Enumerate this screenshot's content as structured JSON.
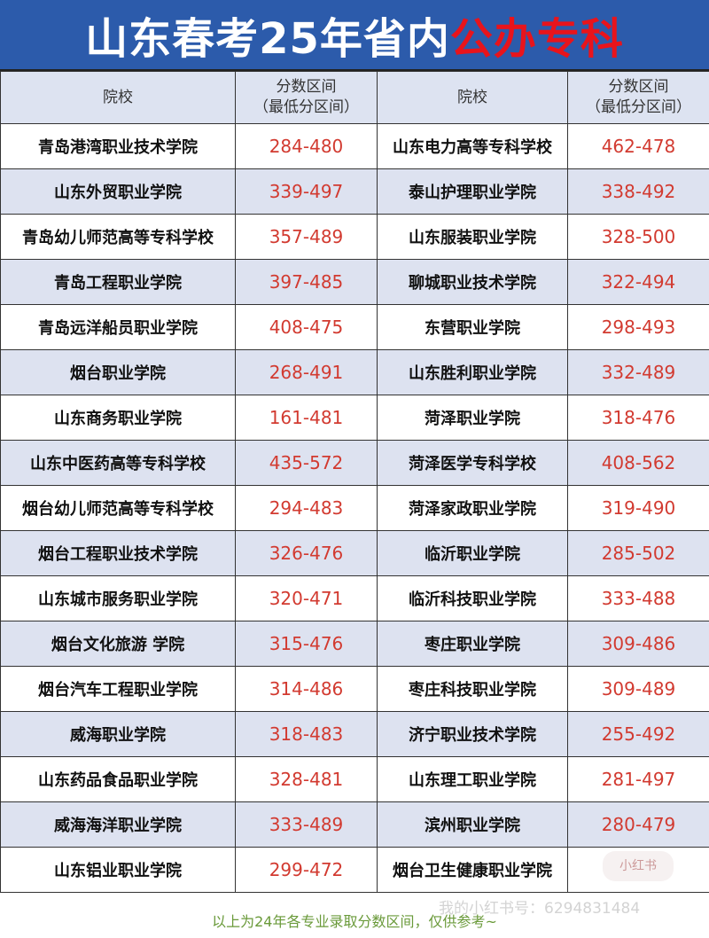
{
  "title": {
    "main": "山东春考25年省内",
    "highlight": "公办专科"
  },
  "headers": {
    "school": "院校",
    "range_line1": "分数区间",
    "range_line2": "（最低分区间）"
  },
  "rows": [
    {
      "a": "青岛港湾职业技术学院",
      "av": "284-480",
      "b": "山东电力高等专科学校",
      "bv": "462-478"
    },
    {
      "a": "山东外贸职业学院",
      "av": "339-497",
      "b": "泰山护理职业学院",
      "bv": "338-492"
    },
    {
      "a": "青岛幼儿师范高等专科学校",
      "av": "357-489",
      "b": "山东服装职业学院",
      "bv": "328-500"
    },
    {
      "a": "青岛工程职业学院",
      "av": "397-485",
      "b": "聊城职业技术学院",
      "bv": "322-494"
    },
    {
      "a": "青岛远洋船员职业学院",
      "av": "408-475",
      "b": "东营职业学院",
      "bv": "298-493"
    },
    {
      "a": "烟台职业学院",
      "av": "268-491",
      "b": "山东胜利职业学院",
      "bv": "332-489"
    },
    {
      "a": "山东商务职业学院",
      "av": "161-481",
      "b": "菏泽职业学院",
      "bv": "318-476"
    },
    {
      "a": "山东中医药高等专科学校",
      "av": "435-572",
      "b": "菏泽医学专科学校",
      "bv": "408-562"
    },
    {
      "a": "烟台幼儿师范高等专科学校",
      "av": "294-483",
      "b": "菏泽家政职业学院",
      "bv": "319-490"
    },
    {
      "a": "烟台工程职业技术学院",
      "av": "326-476",
      "b": "临沂职业学院",
      "bv": "285-502"
    },
    {
      "a": "山东城市服务职业学院",
      "av": "320-471",
      "b": "临沂科技职业学院",
      "bv": "333-488"
    },
    {
      "a": "烟台文化旅游 学院",
      "av": "315-476",
      "b": "枣庄职业学院",
      "bv": "309-486"
    },
    {
      "a": "烟台汽车工程职业学院",
      "av": "314-486",
      "b": "枣庄科技职业学院",
      "bv": "309-489"
    },
    {
      "a": "威海职业学院",
      "av": "318-483",
      "b": "济宁职业技术学院",
      "bv": "255-492"
    },
    {
      "a": "山东药品食品职业学院",
      "av": "328-481",
      "b": "山东理工职业学院",
      "bv": "281-497"
    },
    {
      "a": "威海海洋职业学院",
      "av": "333-489",
      "b": "滨州职业学院",
      "bv": "280-479"
    },
    {
      "a": "山东铝业职业学院",
      "av": "299-472",
      "b": "烟台卫生健康职业学院",
      "bv": ""
    }
  ],
  "footer": "以上为24年各专业录取分数区间，仅供参考~",
  "watermark": {
    "logo": "小红书",
    "text": "我的小红书号：6294831484"
  }
}
